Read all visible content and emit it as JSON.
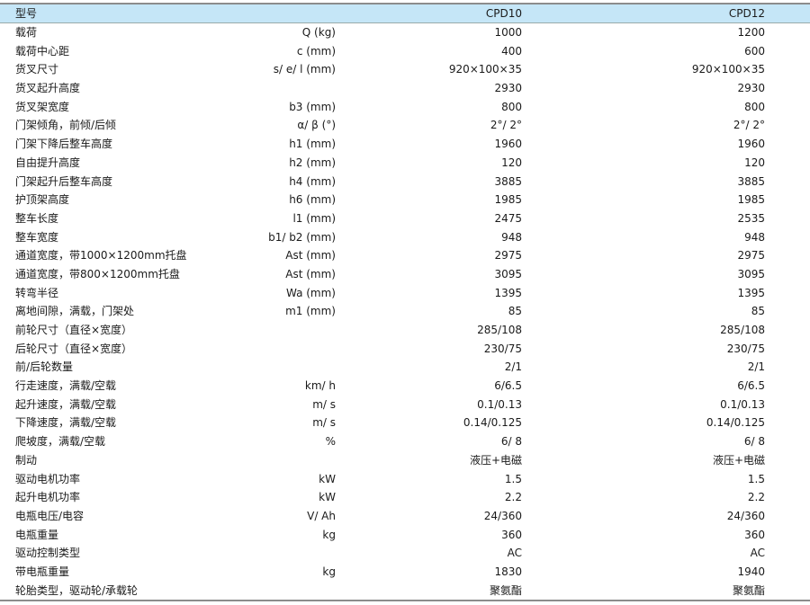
{
  "header": {
    "label": "型号",
    "unit": "",
    "models": [
      "CPD10",
      "CPD12"
    ]
  },
  "rows": [
    {
      "label": "载荷",
      "unit": "Q (kg)",
      "v1": "1000",
      "v2": "1200"
    },
    {
      "label": "载荷中心距",
      "unit": "c (mm)",
      "v1": "400",
      "v2": "600"
    },
    {
      "label": "货叉尺寸",
      "unit": "s/ e/ l (mm)",
      "v1": "920×100×35",
      "v2": "920×100×35"
    },
    {
      "label": "货叉起升高度",
      "unit": "",
      "v1": "2930",
      "v2": "2930"
    },
    {
      "label": "货叉架宽度",
      "unit": "b3 (mm)",
      "v1": "800",
      "v2": "800"
    },
    {
      "label": "门架倾角，前倾/后倾",
      "unit": "α/ β (°)",
      "v1": "2°/ 2°",
      "v2": "2°/ 2°"
    },
    {
      "label": "门架下降后整车高度",
      "unit": "h1 (mm)",
      "v1": "1960",
      "v2": "1960"
    },
    {
      "label": "自由提升高度",
      "unit": "h2 (mm)",
      "v1": "120",
      "v2": "120"
    },
    {
      "label": "门架起升后整车高度",
      "unit": "h4 (mm)",
      "v1": "3885",
      "v2": "3885"
    },
    {
      "label": "护顶架高度",
      "unit": "h6 (mm)",
      "v1": "1985",
      "v2": "1985"
    },
    {
      "label": "整车长度",
      "unit": "l1 (mm)",
      "v1": "2475",
      "v2": "2535"
    },
    {
      "label": "整车宽度",
      "unit": "b1/ b2 (mm)",
      "v1": "948",
      "v2": "948"
    },
    {
      "label": "通道宽度，带1000×1200mm托盘",
      "unit": "Ast (mm)",
      "v1": "2975",
      "v2": "2975"
    },
    {
      "label": "通道宽度，带800×1200mm托盘",
      "unit": "Ast (mm)",
      "v1": "3095",
      "v2": "3095"
    },
    {
      "label": "转弯半径",
      "unit": "Wa (mm)",
      "v1": "1395",
      "v2": "1395"
    },
    {
      "label": "离地间隙，满载，门架处",
      "unit": "m1 (mm)",
      "v1": "85",
      "v2": "85"
    },
    {
      "label": "前轮尺寸（直径×宽度）",
      "unit": "",
      "v1": "285/108",
      "v2": "285/108"
    },
    {
      "label": "后轮尺寸（直径×宽度）",
      "unit": "",
      "v1": "230/75",
      "v2": "230/75"
    },
    {
      "label": "前/后轮数量",
      "unit": "",
      "v1": "2/1",
      "v2": "2/1"
    },
    {
      "label": "行走速度，满载/空载",
      "unit": "km/ h",
      "v1": "6/6.5",
      "v2": "6/6.5"
    },
    {
      "label": "起升速度，满载/空载",
      "unit": "m/ s",
      "v1": "0.1/0.13",
      "v2": "0.1/0.13"
    },
    {
      "label": "下降速度，满载/空载",
      "unit": "m/ s",
      "v1": "0.14/0.125",
      "v2": "0.14/0.125"
    },
    {
      "label": "爬坡度，满载/空载",
      "unit": "%",
      "v1": "6/ 8",
      "v2": "6/ 8"
    },
    {
      "label": "制动",
      "unit": "",
      "v1": "液压+电磁",
      "v2": "液压+电磁"
    },
    {
      "label": "驱动电机功率",
      "unit": "kW",
      "v1": "1.5",
      "v2": "1.5"
    },
    {
      "label": "起升电机功率",
      "unit": "kW",
      "v1": "2.2",
      "v2": "2.2"
    },
    {
      "label": "电瓶电压/电容",
      "unit": "V/ Ah",
      "v1": "24/360",
      "v2": "24/360"
    },
    {
      "label": "电瓶重量",
      "unit": "kg",
      "v1": "360",
      "v2": "360"
    },
    {
      "label": "驱动控制类型",
      "unit": "",
      "v1": "AC",
      "v2": "AC"
    },
    {
      "label": "带电瓶重量",
      "unit": "kg",
      "v1": "1830",
      "v2": "1940"
    },
    {
      "label": "轮胎类型，驱动轮/承载轮",
      "unit": "",
      "v1": "聚氨酯",
      "v2": "聚氨酯"
    }
  ],
  "colors": {
    "header_bg": "#c5e6f7",
    "rule": "#8c8c8c"
  }
}
